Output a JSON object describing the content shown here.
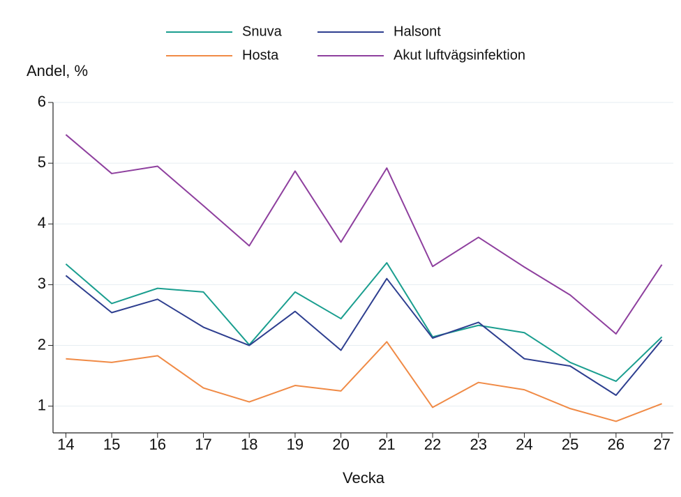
{
  "chart_data": {
    "type": "line",
    "ylabel": "Andel, %",
    "xlabel": "Vecka",
    "x": [
      14,
      15,
      16,
      17,
      18,
      19,
      20,
      21,
      22,
      23,
      24,
      25,
      26,
      27
    ],
    "series": [
      {
        "name": "Snuva",
        "color": "#1a9e8f",
        "values": [
          3.34,
          2.69,
          2.94,
          2.88,
          2.01,
          2.88,
          2.44,
          3.36,
          2.14,
          2.33,
          2.21,
          1.72,
          1.41,
          2.14
        ]
      },
      {
        "name": "Halsont",
        "color": "#2d3e8f",
        "values": [
          3.15,
          2.54,
          2.76,
          2.3,
          2.0,
          2.56,
          1.92,
          3.1,
          2.12,
          2.38,
          1.78,
          1.66,
          1.18,
          2.09
        ]
      },
      {
        "name": "Hosta",
        "color": "#f08a45",
        "values": [
          1.78,
          1.72,
          1.83,
          1.3,
          1.07,
          1.34,
          1.25,
          2.06,
          0.98,
          1.39,
          1.27,
          0.96,
          0.75,
          1.04
        ]
      },
      {
        "name": "Akut luftvägsinfektion",
        "color": "#8e3f9e",
        "values": [
          5.47,
          4.83,
          4.95,
          4.3,
          3.64,
          4.87,
          3.7,
          4.92,
          3.3,
          3.78,
          3.29,
          2.83,
          2.19,
          3.33
        ]
      }
    ],
    "xlim": [
      13.72,
      27.25
    ],
    "xticks": [
      14,
      15,
      16,
      17,
      18,
      19,
      20,
      21,
      22,
      23,
      24,
      25,
      26,
      27
    ],
    "ylim": [
      0.56,
      6
    ],
    "yticks": [
      1,
      2,
      3,
      4,
      5,
      6
    ],
    "grid": true
  }
}
